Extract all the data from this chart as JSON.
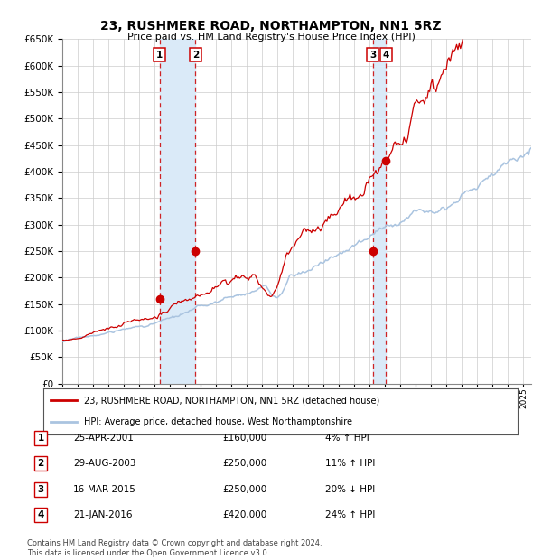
{
  "title": "23, RUSHMERE ROAD, NORTHAMPTON, NN1 5RZ",
  "subtitle": "Price paid vs. HM Land Registry's House Price Index (HPI)",
  "legend_line1": "23, RUSHMERE ROAD, NORTHAMPTON, NN1 5RZ (detached house)",
  "legend_line2": "HPI: Average price, detached house, West Northamptonshire",
  "footnote": "Contains HM Land Registry data © Crown copyright and database right 2024.\nThis data is licensed under the Open Government Licence v3.0.",
  "hpi_color": "#aac4e0",
  "price_color": "#cc0000",
  "marker_color": "#cc0000",
  "shade_color": "#daeaf8",
  "vline_color": "#cc0000",
  "ylim": [
    0,
    650000
  ],
  "ytick_step": 50000,
  "transactions": [
    {
      "num": 1,
      "date": "25-APR-2001",
      "price": 160000,
      "pct": "4%",
      "dir": "↑",
      "year": 2001.32
    },
    {
      "num": 2,
      "date": "29-AUG-2003",
      "price": 250000,
      "pct": "11%",
      "dir": "↑",
      "year": 2003.66
    },
    {
      "num": 3,
      "date": "16-MAR-2015",
      "price": 250000,
      "pct": "20%",
      "dir": "↓",
      "year": 2015.21
    },
    {
      "num": 4,
      "date": "21-JAN-2016",
      "price": 420000,
      "pct": "24%",
      "dir": "↑",
      "year": 2016.06
    }
  ],
  "background_color": "#ffffff",
  "grid_color": "#cccccc",
  "xlim_start": 1995.0,
  "xlim_end": 2025.5
}
